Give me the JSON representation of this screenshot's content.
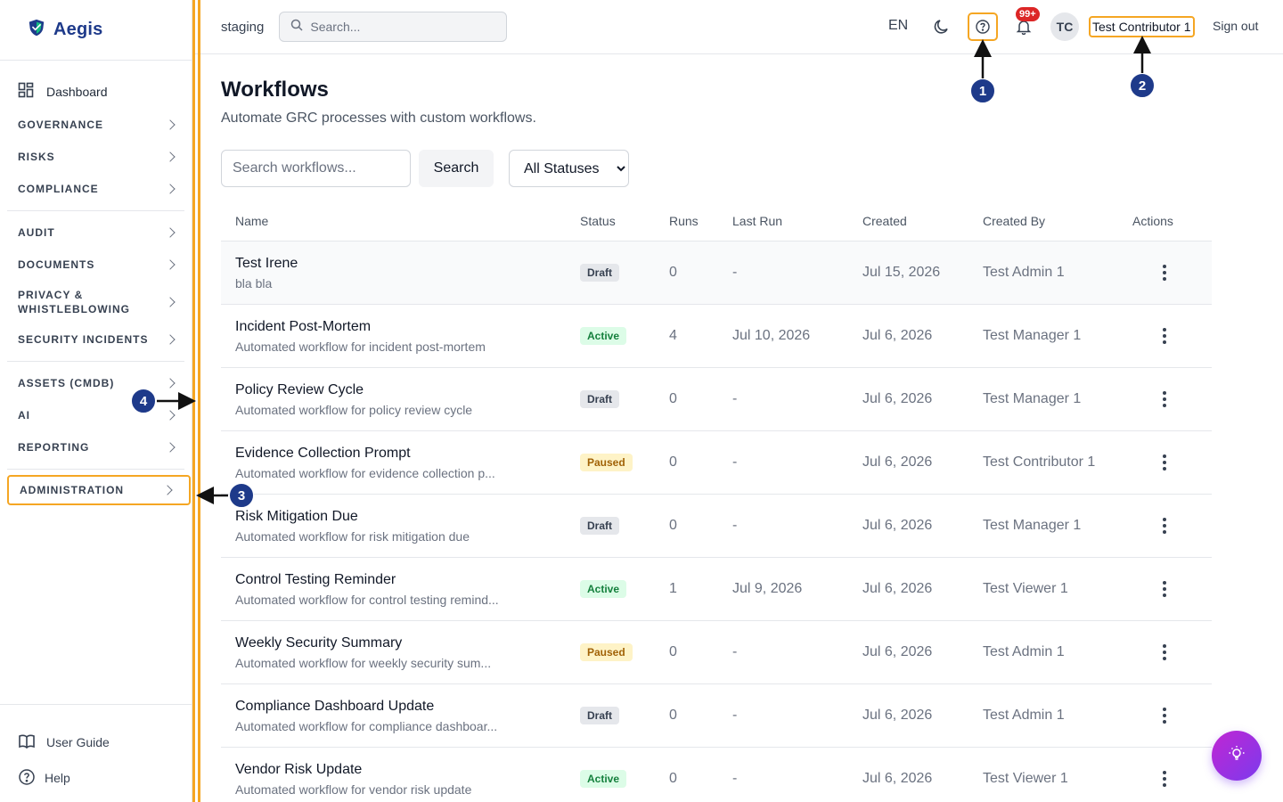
{
  "brand": {
    "name": "Aegis"
  },
  "sidebar": {
    "dashboard": "Dashboard",
    "groups": [
      [
        "GOVERNANCE",
        "RISKS",
        "COMPLIANCE"
      ],
      [
        "AUDIT",
        "DOCUMENTS",
        "PRIVACY & WHISTLEBLOWING",
        "SECURITY INCIDENTS"
      ],
      [
        "ASSETS (CMDB)",
        "AI",
        "REPORTING"
      ]
    ],
    "admin": "ADMINISTRATION",
    "footer": {
      "user_guide": "User Guide",
      "help": "Help"
    }
  },
  "header": {
    "env": "staging",
    "search_placeholder": "Search...",
    "lang": "EN",
    "notif_badge": "99+",
    "avatar": "TC",
    "user": "Test Contributor 1",
    "signout": "Sign out"
  },
  "page": {
    "title": "Workflows",
    "subtitle": "Automate GRC processes with custom workflows.",
    "filter_placeholder": "Search workflows...",
    "search_btn": "Search",
    "status_select": "All Statuses"
  },
  "table": {
    "headers": [
      "Name",
      "Status",
      "Runs",
      "Last Run",
      "Created",
      "Created By",
      "Actions"
    ],
    "rows": [
      {
        "name": "Test Irene",
        "desc": "bla bla",
        "status": "Draft",
        "runs": "0",
        "last_run": "-",
        "created": "Jul 15, 2026",
        "by": "Test Admin 1"
      },
      {
        "name": "Incident Post-Mortem",
        "desc": "Automated workflow for incident post-mortem",
        "status": "Active",
        "runs": "4",
        "last_run": "Jul 10, 2026",
        "created": "Jul 6, 2026",
        "by": "Test Manager 1"
      },
      {
        "name": "Policy Review Cycle",
        "desc": "Automated workflow for policy review cycle",
        "status": "Draft",
        "runs": "0",
        "last_run": "-",
        "created": "Jul 6, 2026",
        "by": "Test Manager 1"
      },
      {
        "name": "Evidence Collection Prompt",
        "desc": "Automated workflow for evidence collection p...",
        "status": "Paused",
        "runs": "0",
        "last_run": "-",
        "created": "Jul 6, 2026",
        "by": "Test Contributor 1"
      },
      {
        "name": "Risk Mitigation Due",
        "desc": "Automated workflow for risk mitigation due",
        "status": "Draft",
        "runs": "0",
        "last_run": "-",
        "created": "Jul 6, 2026",
        "by": "Test Manager 1"
      },
      {
        "name": "Control Testing Reminder",
        "desc": "Automated workflow for control testing remind...",
        "status": "Active",
        "runs": "1",
        "last_run": "Jul 9, 2026",
        "created": "Jul 6, 2026",
        "by": "Test Viewer 1"
      },
      {
        "name": "Weekly Security Summary",
        "desc": "Automated workflow for weekly security sum...",
        "status": "Paused",
        "runs": "0",
        "last_run": "-",
        "created": "Jul 6, 2026",
        "by": "Test Admin 1"
      },
      {
        "name": "Compliance Dashboard Update",
        "desc": "Automated workflow for compliance dashboar...",
        "status": "Draft",
        "runs": "0",
        "last_run": "-",
        "created": "Jul 6, 2026",
        "by": "Test Admin 1"
      },
      {
        "name": "Vendor Risk Update",
        "desc": "Automated workflow for vendor risk update",
        "status": "Active",
        "runs": "0",
        "last_run": "-",
        "created": "Jul 6, 2026",
        "by": "Test Viewer 1"
      }
    ]
  },
  "annotations": [
    "1",
    "2",
    "3",
    "4"
  ],
  "colors": {
    "highlight": "#f5a623",
    "marker": "#1e3a8a",
    "brand": "#1e3a8a"
  },
  "icons": [
    "shield-logo-icon",
    "dashboard-grid-icon",
    "chevron-right-icon",
    "book-icon",
    "help-circle-icon",
    "search-icon",
    "moon-icon",
    "bell-icon",
    "kebab-icon",
    "lightbulb-icon"
  ]
}
